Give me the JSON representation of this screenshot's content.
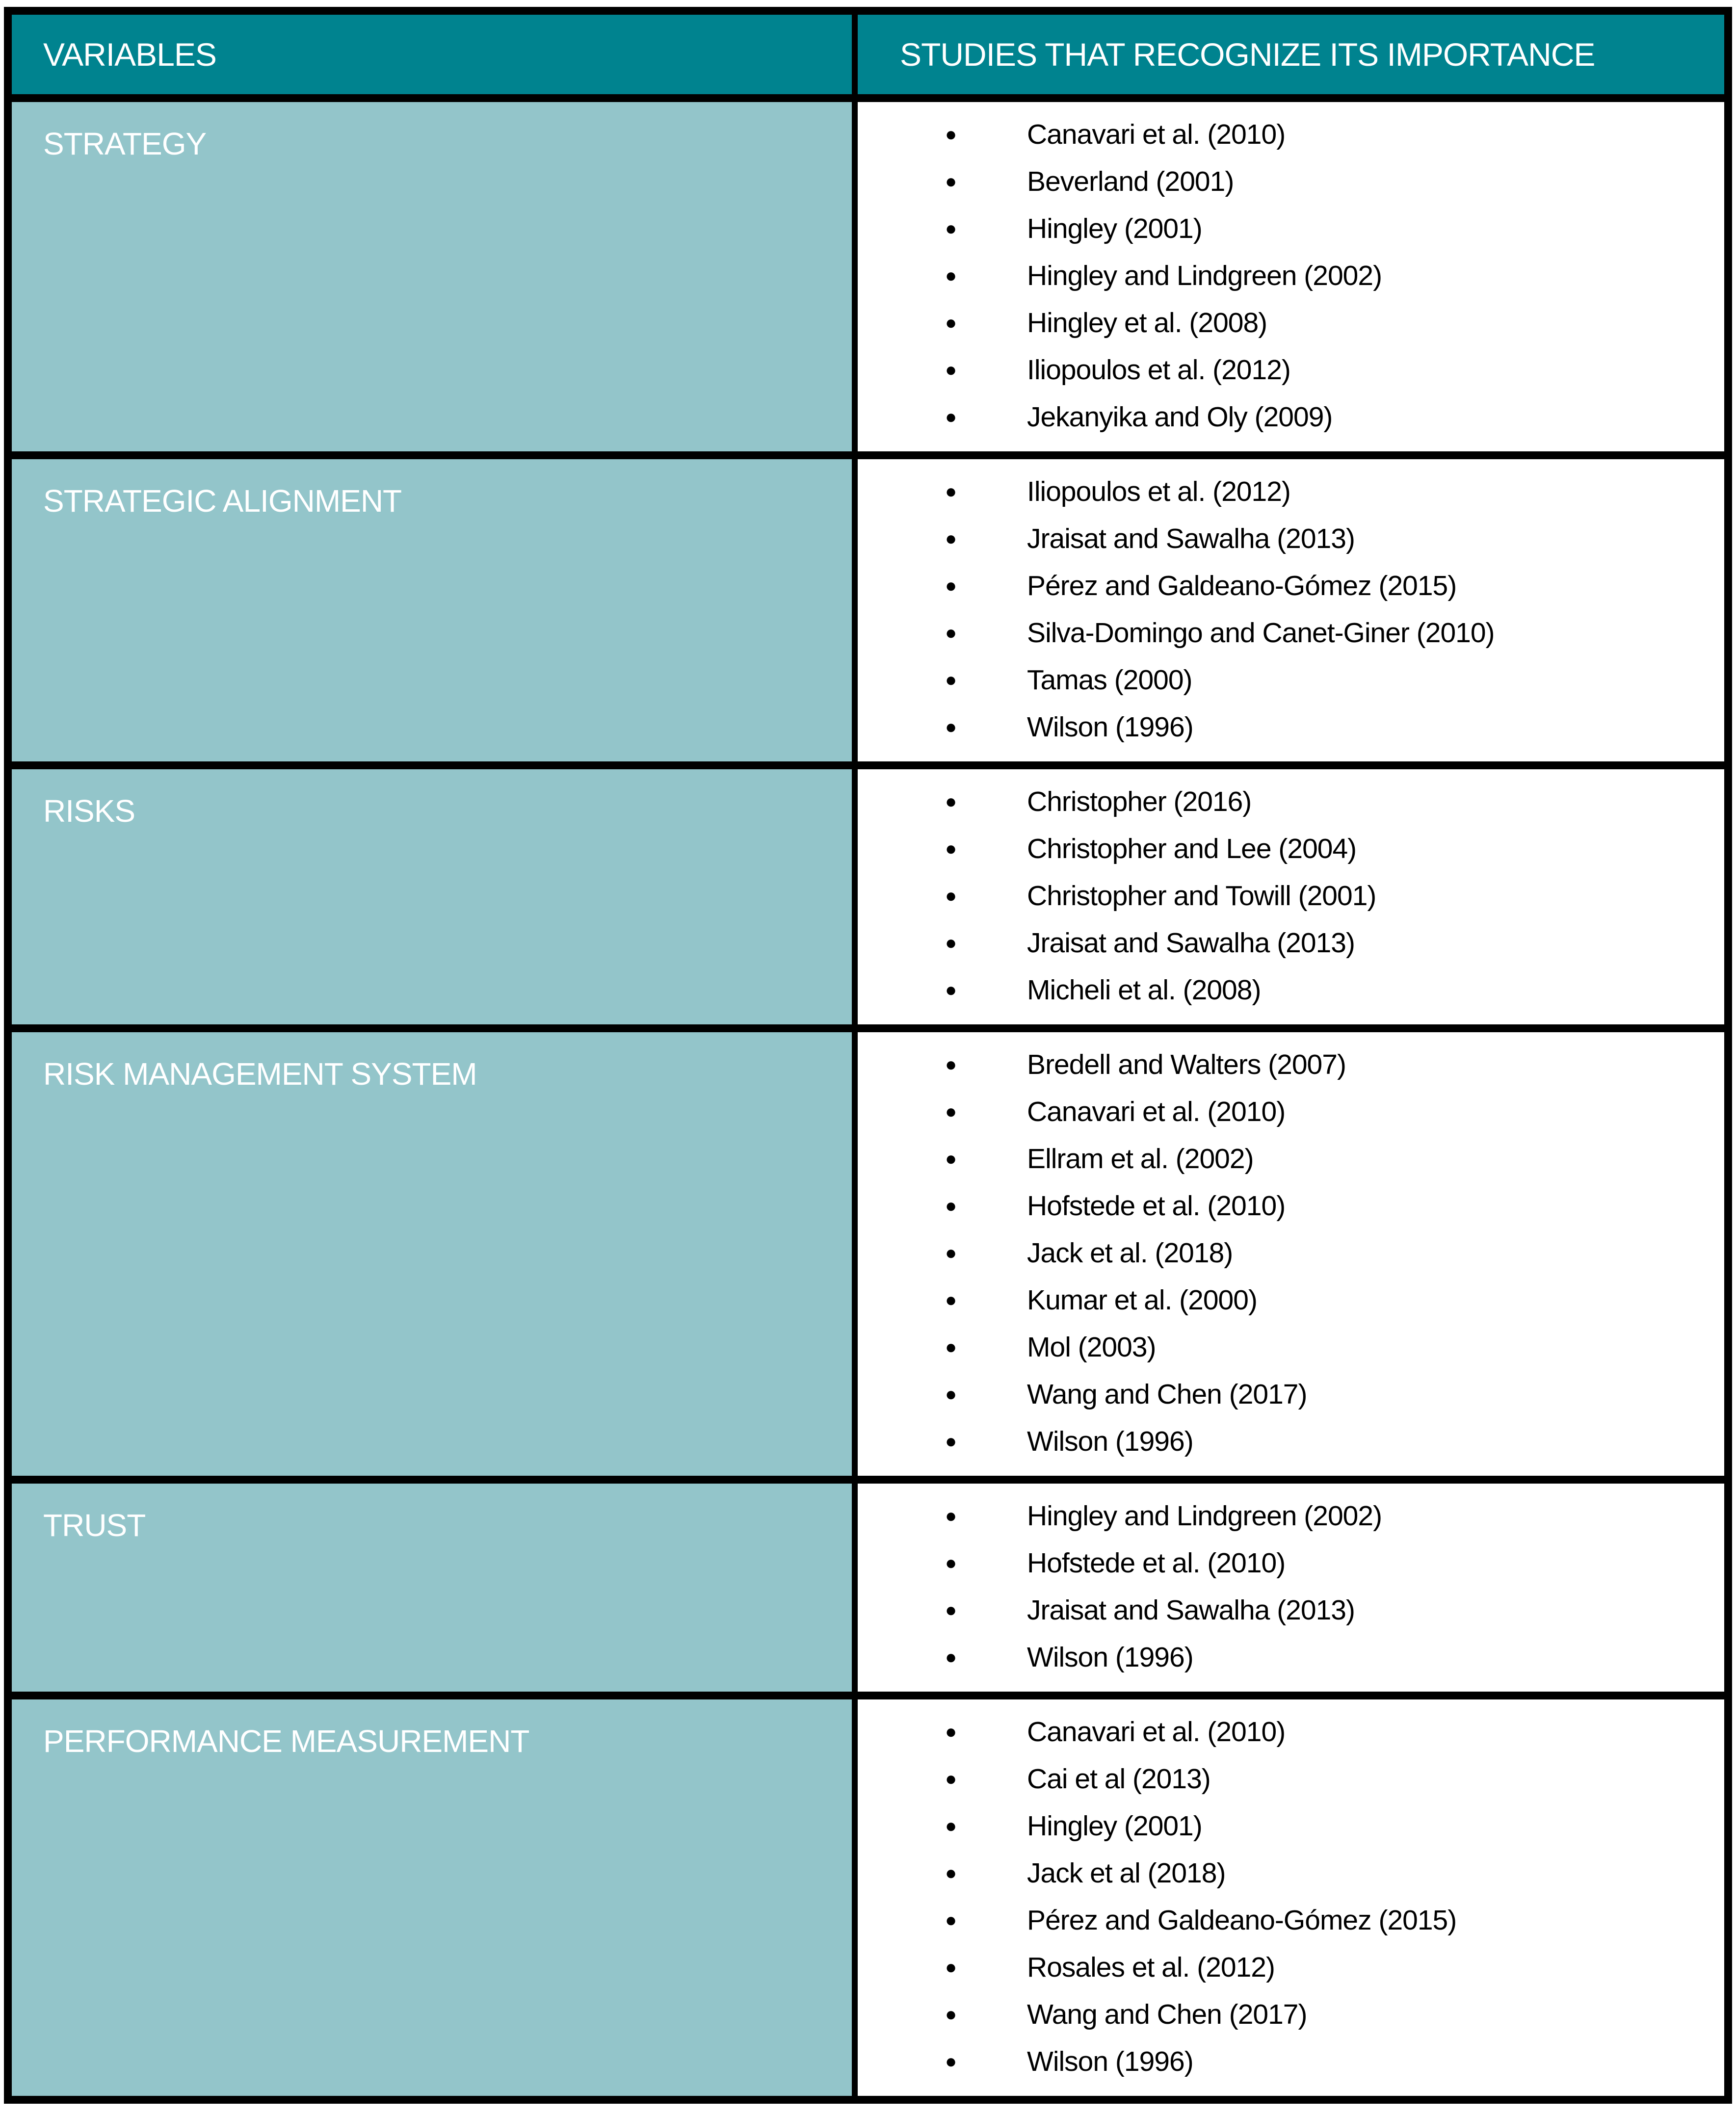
{
  "table": {
    "header": {
      "variables_label": "VARIABLES",
      "studies_label": "STUDIES THAT RECOGNIZE ITS IMPORTANCE"
    },
    "rows": [
      {
        "variable": "STRATEGY",
        "studies": [
          "Canavari et al. (2010)",
          "Beverland (2001)",
          "Hingley (2001)",
          "Hingley and Lindgreen (2002)",
          "Hingley et al. (2008)",
          "Iliopoulos et al. (2012)",
          "Jekanyika and Oly (2009)"
        ]
      },
      {
        "variable": "STRATEGIC ALIGNMENT",
        "studies": [
          "Iliopoulos et al. (2012)",
          "Jraisat and Sawalha (2013)",
          "Pérez and Galdeano-Gómez (2015)",
          "Silva-Domingo and Canet-Giner (2010)",
          "Tamas (2000)",
          "Wilson (1996)"
        ]
      },
      {
        "variable": "RISKS",
        "studies": [
          "Christopher (2016)",
          "Christopher and Lee (2004)",
          "Christopher and Towill (2001)",
          "Jraisat and Sawalha (2013)",
          "Micheli et al. (2008)"
        ]
      },
      {
        "variable": "RISK MANAGEMENT SYSTEM",
        "studies": [
          "Bredell and Walters (2007)",
          "Canavari et al. (2010)",
          "Ellram et al. (2002)",
          "Hofstede et al. (2010)",
          "Jack et al. (2018)",
          "Kumar et al. (2000)",
          "Mol (2003)",
          "Wang and Chen (2017)",
          "Wilson (1996)"
        ]
      },
      {
        "variable": "TRUST",
        "studies": [
          "Hingley and Lindgreen (2002)",
          "Hofstede et al. (2010)",
          "Jraisat and Sawalha (2013)",
          "Wilson (1996)"
        ]
      },
      {
        "variable": "PERFORMANCE MEASUREMENT",
        "studies": [
          "Canavari et al. (2010)",
          "Cai et al (2013)",
          "Hingley (2001)",
          "Jack et al (2018)",
          "Pérez and Galdeano-Gómez (2015)",
          "Rosales et al. (2012)",
          "Wang and Chen (2017)",
          "Wilson (1996)"
        ]
      }
    ]
  },
  "colors": {
    "header_bg": "#00838F",
    "variable_bg": "#93C5CA",
    "border": "#000000",
    "text_light": "#FFFFFF",
    "text_dark": "#000000"
  }
}
